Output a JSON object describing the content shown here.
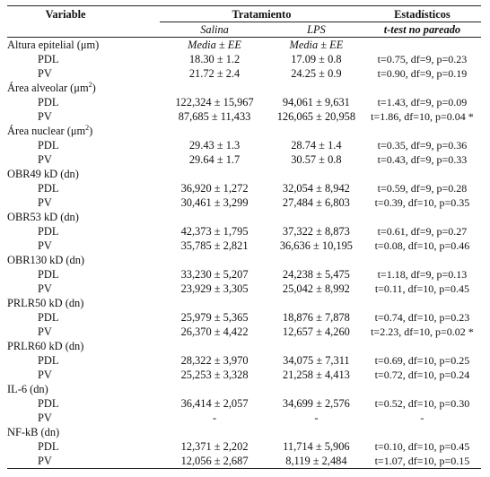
{
  "header": {
    "variable": "Variable",
    "tratamiento": "Tratamiento",
    "estadisticos": "Estadísticos",
    "salina": "Salina",
    "lps": "LPS",
    "ttest": "t-test no pareado"
  },
  "rows": [
    {
      "type": "var",
      "label": "Altura epitelial (μm)",
      "salina": "Media ± EE",
      "lps": "Media ± EE"
    },
    {
      "type": "row",
      "label": "PDL",
      "salina": "18.30 ± 1.2",
      "lps": "17.09 ± 0.8",
      "stat": "t=0.75, df=9, p=0.23"
    },
    {
      "type": "row",
      "label": "PV",
      "salina": "21.72 ± 2.4",
      "lps": "24.25 ± 0.9",
      "stat": "t=0.90, df=9, p=0.19"
    },
    {
      "type": "var",
      "label": "Área alveolar (μm",
      "sup": "2",
      "close": ")"
    },
    {
      "type": "row",
      "label": "PDL",
      "salina": "122,324 ± 15,967",
      "lps": "94,061 ± 9,631",
      "stat": "t=1.43, df=9, p=0.09"
    },
    {
      "type": "row",
      "label": "PV",
      "salina": "87,685 ± 11,433",
      "lps": "126,065 ± 20,958",
      "stat": "t=1.86, df=10, p=0.04 *"
    },
    {
      "type": "var",
      "label": "Área nuclear (μm",
      "sup": "2",
      "close": ")"
    },
    {
      "type": "row",
      "label": "PDL",
      "salina": "29.43 ± 1.3",
      "lps": "28.74 ± 1.4",
      "stat": "t=0.35, df=9, p=0.36"
    },
    {
      "type": "row",
      "label": "PV",
      "salina": "29.64 ± 1.7",
      "lps": "30.57 ± 0.8",
      "stat": "t=0.43, df=9, p=0.33"
    },
    {
      "type": "var",
      "label": "OBR49 kD (dn)"
    },
    {
      "type": "row",
      "label": "PDL",
      "salina": "36,920 ± 1,272",
      "lps": "32,054 ± 8,942",
      "stat": "t=0.59, df=9, p=0.28"
    },
    {
      "type": "row",
      "label": "PV",
      "salina": "30,461 ± 3,299",
      "lps": "27,484 ± 6,803",
      "stat": "t=0.39, df=10, p=0.35"
    },
    {
      "type": "var",
      "label": "OBR53 kD (dn)"
    },
    {
      "type": "row",
      "label": "PDL",
      "salina": "42,373 ± 1,795",
      "lps": "37,322 ± 8,873",
      "stat": "t=0.61, df=9, p=0.27"
    },
    {
      "type": "row",
      "label": "PV",
      "salina": "35,785 ± 2,821",
      "lps": "36,636 ± 10,195",
      "stat": "t=0.08, df=10, p=0.46"
    },
    {
      "type": "var",
      "label": "OBR130 kD (dn)"
    },
    {
      "type": "row",
      "label": "PDL",
      "salina": "33,230 ± 5,207",
      "lps": "24,238 ± 5,475",
      "stat": "t=1.18, df=9, p=0.13"
    },
    {
      "type": "row",
      "label": "PV",
      "salina": "23,929 ± 3,305",
      "lps": "25,042 ± 8,992",
      "stat": "t=0.11, df=10, p=0.45"
    },
    {
      "type": "var",
      "label": "PRLR50 kD (dn)"
    },
    {
      "type": "row",
      "label": "PDL",
      "salina": "25,979 ± 5,365",
      "lps": "18,876 ± 7,878",
      "stat": "t=0.74, df=10, p=0.23"
    },
    {
      "type": "row",
      "label": "PV",
      "salina": "26,370 ± 4,422",
      "lps": "12,657 ± 4,260",
      "stat": "t=2.23, df=10, p=0.02 *"
    },
    {
      "type": "var",
      "label": "PRLR60 kD (dn)"
    },
    {
      "type": "row",
      "label": "PDL",
      "salina": "28,322 ± 3,970",
      "lps": "34,075 ± 7,311",
      "stat": "t=0.69, df=10, p=0.25"
    },
    {
      "type": "row",
      "label": "PV",
      "salina": "25,253 ± 3,328",
      "lps": "21,258 ± 4,413",
      "stat": "t=0.72, df=10, p=0.24"
    },
    {
      "type": "var",
      "label": "IL-6 (dn)"
    },
    {
      "type": "row",
      "label": "PDL",
      "salina": "36,414 ± 2,057",
      "lps": "34,699 ± 2,576",
      "stat": "t=0.52, df=10, p=0.30"
    },
    {
      "type": "row",
      "label": "PV",
      "salina": "-",
      "lps": "-",
      "stat": "-"
    },
    {
      "type": "var",
      "label": "NF-kB (dn)"
    },
    {
      "type": "row",
      "label": "PDL",
      "salina": "12,371 ± 2,202",
      "lps": "11,714 ± 5,906",
      "stat": "t=0.10, df=10, p=0.45"
    },
    {
      "type": "row",
      "label": "PV",
      "salina": "12,056 ± 2,687",
      "lps": "8,119 ± 2,484",
      "stat": "t=1.07, df=10, p=0.15"
    }
  ]
}
